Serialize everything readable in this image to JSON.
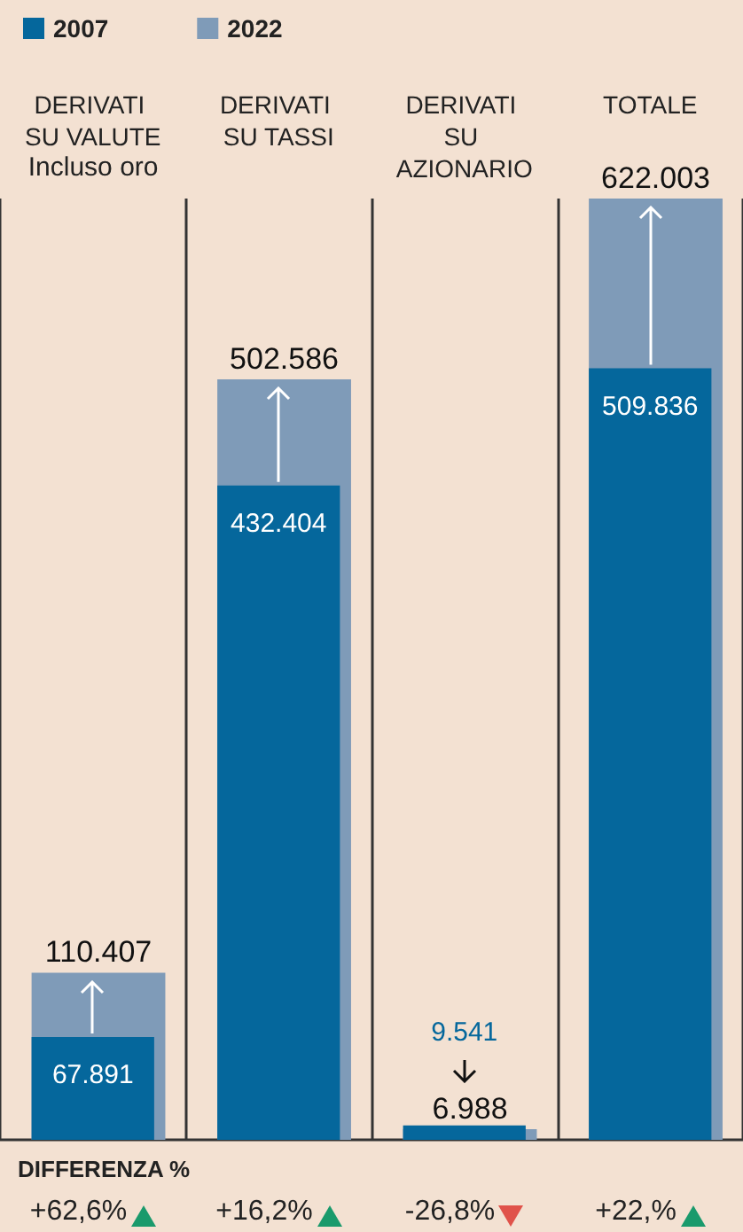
{
  "chart_data": {
    "type": "bar",
    "categories": [
      "DERIVATI SU VALUTE",
      "DERIVATI SU TASSI",
      "DERIVATI SU AZIONARIO",
      "TOTALE"
    ],
    "series": [
      {
        "name": "2022",
        "color": "#7f9bb8",
        "values": [
          110407,
          502586,
          6988,
          622003
        ],
        "value_labels": [
          "110.407",
          "502.586",
          "6.988",
          "622.003"
        ]
      },
      {
        "name": "2007",
        "color": "#05679c",
        "values": [
          67891,
          432404,
          9541,
          509836
        ],
        "value_labels": [
          "67.891",
          "432.404",
          "9.541",
          "509.836"
        ]
      }
    ],
    "legend": "top left",
    "grid": "x",
    "annotations": [
      "Incluso oro",
      "DIFFERENZA %",
      "+62,6%",
      "+16,2%",
      "-26,8%",
      "+22,%"
    ]
  }
}
